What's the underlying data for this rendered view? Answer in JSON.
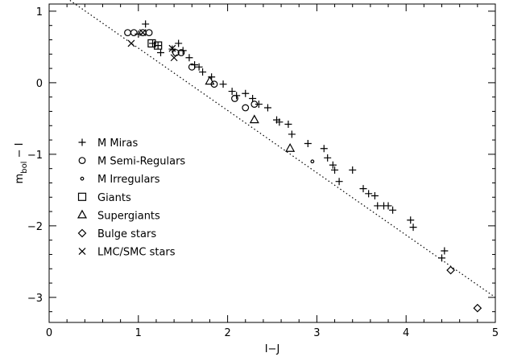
{
  "chart_data": {
    "type": "scatter",
    "title": "",
    "xlabel": "I−J",
    "ylabel_main": "m",
    "ylabel_sub": "bol",
    "ylabel_tail": " − I",
    "xlim": [
      0,
      5
    ],
    "ylim": [
      -3.35,
      1.1
    ],
    "xticks": [
      "0",
      "1",
      "2",
      "3",
      "4",
      "5"
    ],
    "yticks": [
      "1",
      "0",
      "−1",
      "−2",
      "−3"
    ],
    "ytick_values": [
      1,
      0,
      -1,
      -2,
      -3
    ],
    "grid": false,
    "legend_position": "center-left",
    "fit_line": {
      "x": [
        0.2,
        5.0
      ],
      "y": [
        1.18,
        -3.0
      ]
    },
    "series": [
      {
        "name": "M Miras",
        "marker": "plus",
        "x": [
          1.0,
          1.08,
          1.16,
          1.22,
          1.25,
          1.38,
          1.45,
          1.5,
          1.57,
          1.63,
          1.68,
          1.72,
          1.82,
          1.95,
          2.05,
          2.1,
          2.2,
          2.28,
          2.35,
          2.45,
          2.55,
          2.58,
          2.68,
          2.72,
          2.9,
          3.08,
          3.12,
          3.18,
          3.2,
          3.25,
          3.4,
          3.52,
          3.58,
          3.65,
          3.68,
          3.75,
          3.8,
          3.85,
          4.05,
          4.08,
          4.4,
          4.43
        ],
        "y": [
          0.68,
          0.82,
          0.55,
          0.52,
          0.42,
          0.47,
          0.55,
          0.45,
          0.35,
          0.25,
          0.22,
          0.15,
          0.08,
          -0.02,
          -0.12,
          -0.18,
          -0.15,
          -0.22,
          -0.3,
          -0.35,
          -0.52,
          -0.55,
          -0.58,
          -0.72,
          -0.85,
          -0.92,
          -1.05,
          -1.15,
          -1.22,
          -1.38,
          -1.22,
          -1.48,
          -1.55,
          -1.58,
          -1.72,
          -1.72,
          -1.72,
          -1.78,
          -1.92,
          -2.02,
          -2.45,
          -2.35
        ]
      },
      {
        "name": "M Semi-Regulars",
        "marker": "circle",
        "x": [
          0.88,
          0.95,
          1.05,
          1.12,
          1.42,
          1.48,
          1.6,
          1.85,
          2.08,
          2.2,
          2.3
        ],
        "y": [
          0.7,
          0.7,
          0.7,
          0.7,
          0.42,
          0.42,
          0.22,
          -0.02,
          -0.22,
          -0.35,
          -0.3
        ]
      },
      {
        "name": "M Irregulars",
        "marker": "dot",
        "x": [
          2.95
        ],
        "y": [
          -1.1
        ]
      },
      {
        "name": "Giants",
        "marker": "square",
        "x": [
          1.15,
          1.22
        ],
        "y": [
          0.55,
          0.52
        ]
      },
      {
        "name": "Supergiants",
        "marker": "triangle",
        "x": [
          1.8,
          2.3,
          2.7
        ],
        "y": [
          0.02,
          -0.52,
          -0.92
        ]
      },
      {
        "name": "Bulge stars",
        "marker": "diamond",
        "x": [
          4.5,
          4.8
        ],
        "y": [
          -2.62,
          -3.15
        ]
      },
      {
        "name": "LMC/SMC stars",
        "marker": "cross",
        "x": [
          0.92,
          1.05,
          1.38,
          1.4
        ],
        "y": [
          0.55,
          0.7,
          0.48,
          0.35
        ]
      }
    ]
  }
}
